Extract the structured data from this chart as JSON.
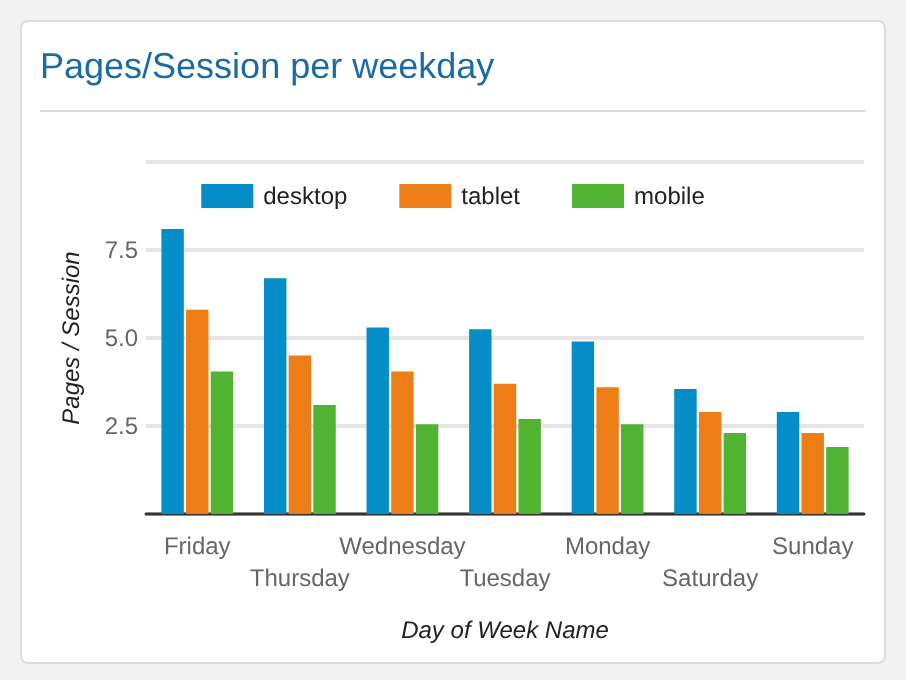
{
  "chart_data": {
    "type": "bar",
    "title": "Pages/Session per weekday",
    "xlabel": "Day of Week Name",
    "ylabel": "Pages / Session",
    "categories": [
      "Friday",
      "Thursday",
      "Wednesday",
      "Tuesday",
      "Monday",
      "Saturday",
      "Sunday"
    ],
    "series": [
      {
        "name": "desktop",
        "color": "#058dc7",
        "values": [
          8.1,
          6.7,
          5.3,
          5.25,
          4.9,
          3.55,
          2.9
        ]
      },
      {
        "name": "tablet",
        "color": "#ed7e17",
        "values": [
          5.8,
          4.5,
          4.05,
          3.7,
          3.6,
          2.9,
          2.3
        ]
      },
      {
        "name": "mobile",
        "color": "#50b432",
        "values": [
          4.05,
          3.1,
          2.55,
          2.7,
          2.55,
          2.3,
          1.9
        ]
      }
    ],
    "ylim": [
      0,
      10
    ],
    "yticks": [
      {
        "value": 0,
        "label": null
      },
      {
        "value": 2.5,
        "label": "2.5"
      },
      {
        "value": 5,
        "label": "5.0"
      },
      {
        "value": 7.5,
        "label": "7.5"
      },
      {
        "value": 10,
        "label": null
      }
    ],
    "grid": "y",
    "legend": "top"
  }
}
